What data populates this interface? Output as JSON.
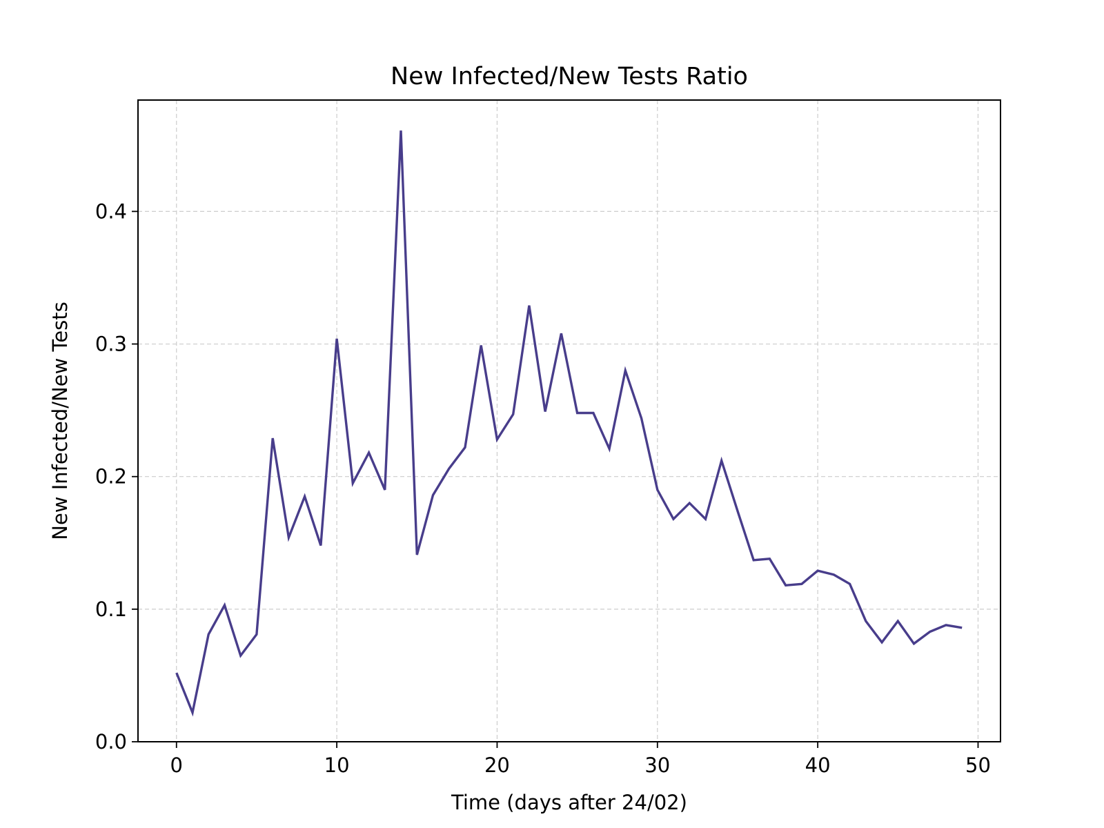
{
  "chart_data": {
    "type": "line",
    "title": "New Infected/New Tests Ratio",
    "xlabel": "Time (days after 24/02)",
    "ylabel": "New Infected/New Tests",
    "xlim": [
      -2.4,
      51.4
    ],
    "ylim": [
      0.0,
      0.484
    ],
    "xticks": [
      0,
      10,
      20,
      30,
      40,
      50
    ],
    "xtick_labels": [
      "0",
      "10",
      "20",
      "30",
      "40",
      "50"
    ],
    "yticks": [
      0.0,
      0.1,
      0.2,
      0.3,
      0.4
    ],
    "ytick_labels": [
      "0.0",
      "0.1",
      "0.2",
      "0.3",
      "0.4"
    ],
    "grid": true,
    "line_color": "#483d8b",
    "series": [
      {
        "x": [
          0,
          1,
          2,
          3,
          4,
          5,
          6,
          7,
          8,
          9,
          10,
          11,
          12,
          13,
          14,
          15,
          16,
          17,
          18,
          19,
          20,
          21,
          22,
          23,
          24,
          25,
          26,
          27,
          28,
          29,
          30,
          31,
          32,
          33,
          34,
          35,
          36,
          37,
          38,
          39,
          40,
          41,
          42,
          43,
          44,
          45,
          46,
          47,
          48,
          49
        ],
        "values": [
          0.052,
          0.022,
          0.081,
          0.103,
          0.065,
          0.081,
          0.229,
          0.154,
          0.185,
          0.148,
          0.304,
          0.195,
          0.218,
          0.19,
          0.461,
          0.141,
          0.186,
          0.206,
          0.222,
          0.299,
          0.228,
          0.247,
          0.329,
          0.249,
          0.308,
          0.248,
          0.248,
          0.221,
          0.28,
          0.244,
          0.19,
          0.168,
          0.18,
          0.168,
          0.212,
          0.174,
          0.137,
          0.138,
          0.118,
          0.119,
          0.129,
          0.126,
          0.119,
          0.091,
          0.075,
          0.091,
          0.074,
          0.083,
          0.088,
          0.086
        ]
      }
    ]
  }
}
